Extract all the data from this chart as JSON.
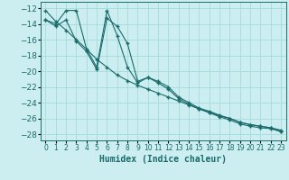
{
  "xlabel": "Humidex (Indice chaleur)",
  "bg_color": "#cceef0",
  "grid_color": "#aadddf",
  "line_color": "#1a6b6b",
  "xlim": [
    -0.5,
    23.5
  ],
  "ylim": [
    -28.8,
    -11.2
  ],
  "xticks": [
    0,
    1,
    2,
    3,
    4,
    5,
    6,
    7,
    8,
    9,
    10,
    11,
    12,
    13,
    14,
    15,
    16,
    17,
    18,
    19,
    20,
    21,
    22,
    23
  ],
  "yticks": [
    -28,
    -26,
    -24,
    -22,
    -20,
    -18,
    -16,
    -14,
    -12
  ],
  "lines": [
    {
      "x": [
        0,
        1,
        2,
        3,
        4,
        5,
        6,
        7,
        8,
        9,
        10,
        11,
        12,
        13,
        14,
        15,
        16,
        17,
        18,
        19,
        20,
        21,
        22,
        23
      ],
      "y": [
        -12.3,
        -13.7,
        -14.8,
        -16.0,
        -17.2,
        -18.5,
        -19.5,
        -20.5,
        -21.2,
        -21.8,
        -22.3,
        -22.8,
        -23.3,
        -23.8,
        -24.3,
        -24.8,
        -25.2,
        -25.7,
        -26.0,
        -26.5,
        -26.8,
        -27.0,
        -27.2,
        -27.5
      ]
    },
    {
      "x": [
        0,
        1,
        2,
        3,
        4,
        5,
        6,
        7,
        8,
        9,
        10,
        11,
        12,
        13,
        14,
        15,
        16,
        17,
        18,
        19,
        20,
        21,
        22,
        23
      ],
      "y": [
        -13.5,
        -14.0,
        -12.3,
        -12.3,
        -17.2,
        -19.5,
        -12.3,
        -15.5,
        -19.5,
        -21.5,
        -20.8,
        -21.5,
        -22.3,
        -23.5,
        -24.2,
        -24.8,
        -25.3,
        -25.8,
        -26.2,
        -26.7,
        -27.0,
        -27.2,
        -27.3,
        -27.7
      ]
    },
    {
      "x": [
        0,
        1,
        2,
        3,
        4,
        5,
        6,
        7,
        8,
        9,
        10,
        11,
        12,
        13,
        14,
        15,
        16,
        17,
        18,
        19,
        20,
        21,
        22,
        23
      ],
      "y": [
        -13.5,
        -14.3,
        -13.5,
        -16.2,
        -17.5,
        -19.8,
        -13.3,
        -14.3,
        -16.5,
        -21.3,
        -20.8,
        -21.3,
        -22.0,
        -23.3,
        -24.0,
        -24.7,
        -25.1,
        -25.6,
        -26.0,
        -26.5,
        -26.8,
        -27.0,
        -27.2,
        -27.6
      ]
    }
  ]
}
